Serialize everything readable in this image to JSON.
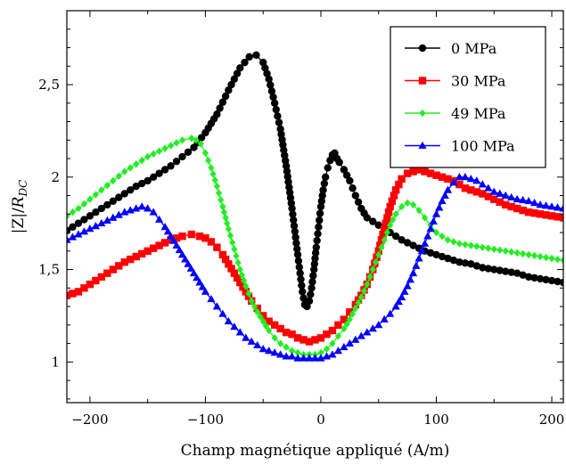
{
  "chart_data": {
    "type": "line",
    "xlabel": "Champ magnétique appliqué (A/m)",
    "ylabel_parts": [
      "|Z|/",
      "R",
      "DC"
    ],
    "xlim": [
      -220,
      210
    ],
    "ylim": [
      0.78,
      2.9
    ],
    "xticks": [
      -200,
      -100,
      0,
      100,
      200
    ],
    "xtick_labels": [
      "−200",
      "−100",
      "0",
      "100",
      "200"
    ],
    "yticks": [
      1,
      1.5,
      2,
      2.5
    ],
    "ytick_labels": [
      "1",
      "1,5",
      "2",
      "2,5"
    ],
    "legend_position": "top-right",
    "grid": false,
    "series": [
      {
        "name": "0 MPa",
        "color": "#000000",
        "marker": "circle",
        "x": [
          -220,
          -210,
          -200,
          -190,
          -180,
          -170,
          -160,
          -150,
          -140,
          -130,
          -120,
          -110,
          -100,
          -90,
          -80,
          -70,
          -62,
          -56,
          -50,
          -45,
          -40,
          -35,
          -30,
          -25,
          -20,
          -16,
          -14,
          -12,
          -10,
          -8,
          -6,
          -4,
          -2,
          0,
          2,
          4,
          6,
          8,
          10,
          12,
          14,
          16,
          20,
          25,
          30,
          35,
          40,
          50,
          60,
          70,
          80,
          90,
          100,
          110,
          120,
          130,
          140,
          150,
          160,
          170,
          180,
          190,
          200,
          210
        ],
        "y": [
          1.71,
          1.75,
          1.79,
          1.83,
          1.87,
          1.91,
          1.95,
          1.98,
          2.02,
          2.06,
          2.11,
          2.16,
          2.24,
          2.34,
          2.47,
          2.59,
          2.65,
          2.66,
          2.62,
          2.53,
          2.4,
          2.26,
          2.06,
          1.83,
          1.58,
          1.38,
          1.31,
          1.3,
          1.33,
          1.4,
          1.5,
          1.62,
          1.73,
          1.84,
          1.93,
          2.0,
          2.05,
          2.09,
          2.12,
          2.13,
          2.1,
          2.08,
          2.04,
          1.98,
          1.9,
          1.83,
          1.78,
          1.74,
          1.7,
          1.66,
          1.63,
          1.6,
          1.58,
          1.56,
          1.54,
          1.53,
          1.51,
          1.5,
          1.49,
          1.48,
          1.46,
          1.45,
          1.44,
          1.43
        ]
      },
      {
        "name": "30 MPa",
        "color": "#ff0000",
        "marker": "square",
        "x": [
          -220,
          -210,
          -200,
          -190,
          -180,
          -170,
          -160,
          -150,
          -140,
          -130,
          -120,
          -112,
          -105,
          -100,
          -95,
          -90,
          -85,
          -80,
          -75,
          -70,
          -65,
          -60,
          -55,
          -50,
          -45,
          -40,
          -35,
          -30,
          -25,
          -20,
          -15,
          -10,
          -5,
          0,
          5,
          10,
          15,
          20,
          25,
          30,
          35,
          40,
          45,
          50,
          55,
          60,
          65,
          70,
          75,
          80,
          85,
          90,
          95,
          100,
          105,
          110,
          115,
          120,
          125,
          130,
          140,
          150,
          160,
          170,
          180,
          190,
          200,
          210
        ],
        "y": [
          1.36,
          1.38,
          1.42,
          1.46,
          1.5,
          1.54,
          1.57,
          1.6,
          1.63,
          1.66,
          1.68,
          1.69,
          1.68,
          1.67,
          1.65,
          1.62,
          1.58,
          1.53,
          1.48,
          1.43,
          1.38,
          1.33,
          1.29,
          1.25,
          1.22,
          1.2,
          1.18,
          1.16,
          1.15,
          1.13,
          1.12,
          1.11,
          1.12,
          1.13,
          1.15,
          1.17,
          1.2,
          1.23,
          1.27,
          1.31,
          1.36,
          1.42,
          1.5,
          1.6,
          1.72,
          1.84,
          1.93,
          1.99,
          2.02,
          2.03,
          2.04,
          2.03,
          2.02,
          2.01,
          2.0,
          1.99,
          1.98,
          1.96,
          1.94,
          1.93,
          1.91,
          1.88,
          1.85,
          1.83,
          1.81,
          1.8,
          1.79,
          1.78
        ]
      },
      {
        "name": "49 MPa",
        "color": "#22ee22",
        "marker": "diamond",
        "x": [
          -220,
          -210,
          -200,
          -190,
          -180,
          -170,
          -160,
          -150,
          -140,
          -130,
          -120,
          -112,
          -108,
          -104,
          -100,
          -95,
          -90,
          -85,
          -80,
          -75,
          -70,
          -65,
          -60,
          -55,
          -50,
          -45,
          -40,
          -35,
          -30,
          -25,
          -20,
          -15,
          -10,
          -5,
          0,
          5,
          10,
          15,
          20,
          25,
          30,
          35,
          40,
          45,
          50,
          55,
          60,
          65,
          70,
          75,
          80,
          85,
          90,
          95,
          100,
          110,
          120,
          130,
          140,
          150,
          160,
          170,
          180,
          190,
          200,
          210
        ],
        "y": [
          1.79,
          1.83,
          1.88,
          1.93,
          1.98,
          2.03,
          2.07,
          2.11,
          2.14,
          2.17,
          2.2,
          2.21,
          2.2,
          2.18,
          2.13,
          2.05,
          1.95,
          1.84,
          1.72,
          1.61,
          1.5,
          1.41,
          1.33,
          1.27,
          1.22,
          1.17,
          1.13,
          1.1,
          1.08,
          1.06,
          1.05,
          1.04,
          1.04,
          1.04,
          1.05,
          1.07,
          1.1,
          1.14,
          1.18,
          1.23,
          1.29,
          1.35,
          1.42,
          1.5,
          1.58,
          1.66,
          1.74,
          1.8,
          1.84,
          1.86,
          1.85,
          1.82,
          1.78,
          1.74,
          1.7,
          1.66,
          1.64,
          1.63,
          1.62,
          1.61,
          1.6,
          1.59,
          1.58,
          1.57,
          1.56,
          1.55
        ]
      },
      {
        "name": "100 MPa",
        "color": "#0000ff",
        "marker": "triangle",
        "x": [
          -220,
          -210,
          -200,
          -190,
          -180,
          -170,
          -160,
          -155,
          -150,
          -145,
          -140,
          -135,
          -130,
          -125,
          -120,
          -115,
          -110,
          -105,
          -100,
          -95,
          -90,
          -85,
          -80,
          -75,
          -70,
          -65,
          -60,
          -55,
          -50,
          -45,
          -40,
          -35,
          -30,
          -25,
          -20,
          -15,
          -10,
          -5,
          0,
          5,
          10,
          15,
          20,
          25,
          30,
          35,
          40,
          45,
          50,
          55,
          60,
          65,
          70,
          75,
          80,
          85,
          90,
          95,
          100,
          105,
          110,
          115,
          120,
          125,
          130,
          135,
          140,
          145,
          150,
          160,
          170,
          180,
          190,
          200,
          210
        ],
        "y": [
          1.66,
          1.69,
          1.72,
          1.75,
          1.78,
          1.81,
          1.83,
          1.84,
          1.83,
          1.81,
          1.77,
          1.73,
          1.68,
          1.63,
          1.58,
          1.53,
          1.48,
          1.43,
          1.38,
          1.34,
          1.3,
          1.26,
          1.22,
          1.19,
          1.16,
          1.13,
          1.11,
          1.09,
          1.07,
          1.06,
          1.05,
          1.04,
          1.03,
          1.03,
          1.02,
          1.02,
          1.02,
          1.02,
          1.02,
          1.03,
          1.04,
          1.06,
          1.08,
          1.1,
          1.12,
          1.14,
          1.16,
          1.18,
          1.2,
          1.23,
          1.26,
          1.3,
          1.35,
          1.41,
          1.48,
          1.56,
          1.64,
          1.72,
          1.8,
          1.87,
          1.93,
          1.97,
          2.0,
          2.0,
          1.99,
          1.98,
          1.96,
          1.94,
          1.92,
          1.9,
          1.88,
          1.87,
          1.85,
          1.84,
          1.83
        ]
      }
    ]
  }
}
